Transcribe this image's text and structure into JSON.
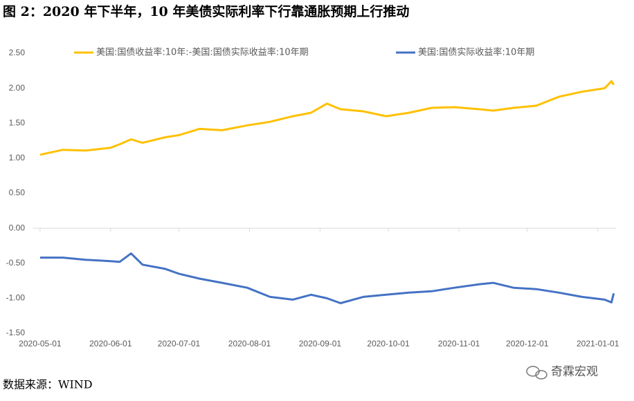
{
  "chart_data": {
    "type": "line",
    "title": "图 2：2020 年下半年，10 年美债实际利率下行靠通胀预期上行推动",
    "source": "数据来源：WIND",
    "watermark": "奇霖宏观",
    "x": [
      "2020-05-01",
      "2020-05-11",
      "2020-05-21",
      "2020-06-01",
      "2020-06-05",
      "2020-06-10",
      "2020-06-15",
      "2020-06-25",
      "2020-07-01",
      "2020-07-10",
      "2020-07-20",
      "2020-07-31",
      "2020-08-10",
      "2020-08-20",
      "2020-08-28",
      "2020-09-04",
      "2020-09-10",
      "2020-09-20",
      "2020-09-30",
      "2020-10-10",
      "2020-10-20",
      "2020-10-30",
      "2020-11-10",
      "2020-11-16",
      "2020-11-25",
      "2020-12-05",
      "2020-12-15",
      "2020-12-25",
      "2021-01-04",
      "2021-01-07",
      "2021-01-08"
    ],
    "series": [
      {
        "name": "美国:国债收益率:10年:-美国:国债实际收益率:10年期",
        "color": "#ffc000",
        "values": [
          1.05,
          1.12,
          1.11,
          1.15,
          1.2,
          1.27,
          1.22,
          1.3,
          1.33,
          1.42,
          1.4,
          1.47,
          1.52,
          1.6,
          1.65,
          1.78,
          1.7,
          1.67,
          1.6,
          1.65,
          1.72,
          1.73,
          1.7,
          1.68,
          1.72,
          1.75,
          1.88,
          1.95,
          2.0,
          2.1,
          2.05
        ]
      },
      {
        "name": "美国:国债实际收益率:10年期",
        "color": "#4472c4",
        "values": [
          -0.42,
          -0.42,
          -0.45,
          -0.47,
          -0.48,
          -0.36,
          -0.52,
          -0.58,
          -0.65,
          -0.72,
          -0.78,
          -0.85,
          -0.98,
          -1.02,
          -0.95,
          -1.0,
          -1.07,
          -0.98,
          -0.95,
          -0.92,
          -0.9,
          -0.85,
          -0.8,
          -0.78,
          -0.85,
          -0.87,
          -0.92,
          -0.98,
          -1.02,
          -1.06,
          -0.93
        ]
      }
    ],
    "xlim": [
      "2020-04-28",
      "2021-01-09"
    ],
    "xticks": [
      "2020-05-01",
      "2020-06-01",
      "2020-07-01",
      "2020-08-01",
      "2020-09-01",
      "2020-10-01",
      "2020-11-01",
      "2020-12-01",
      "2021-01-01"
    ],
    "ylim": [
      -1.5,
      2.5
    ],
    "yticks": [
      {
        "value": 2.5,
        "label": "2.50"
      },
      {
        "value": 2,
        "label": "2.00"
      },
      {
        "value": 1.5,
        "label": "1.50"
      },
      {
        "value": 1,
        "label": "1.00"
      },
      {
        "value": 0.5,
        "label": "0.50"
      },
      {
        "value": 0,
        "label": "0.00"
      },
      {
        "value": -0.5,
        "label": "-0.50"
      },
      {
        "value": -1,
        "label": "-1.00"
      },
      {
        "value": -1.5,
        "label": "-1.50"
      }
    ],
    "legend": "top"
  }
}
